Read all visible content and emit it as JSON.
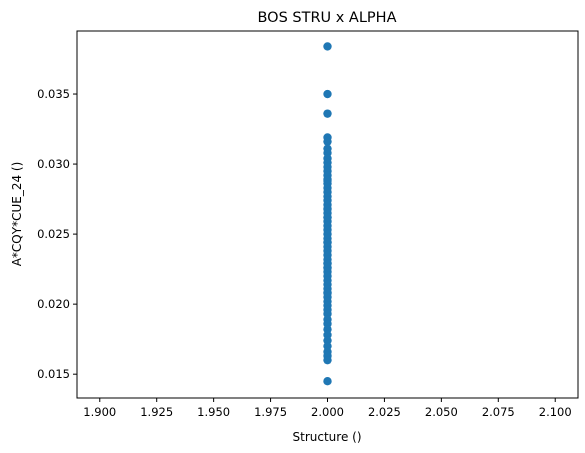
{
  "chart_data": {
    "type": "scatter",
    "title": "BOS STRU x ALPHA",
    "xlabel": "Structure ()",
    "ylabel": "A*CQY*CUE_24 ()",
    "xlim": [
      1.89,
      2.11
    ],
    "ylim": [
      0.0133,
      0.0395
    ],
    "xticks": [
      "1.900",
      "1.925",
      "1.950",
      "1.975",
      "2.000",
      "2.025",
      "2.050",
      "2.075",
      "2.100"
    ],
    "yticks": [
      "0.015",
      "0.020",
      "0.025",
      "0.030",
      "0.035"
    ],
    "grid": false,
    "legend": "none",
    "marker_color": "#1f77b4",
    "x": [
      2.0,
      2.0,
      2.0,
      2.0,
      2.0,
      2.0,
      2.0,
      2.0,
      2.0,
      2.0,
      2.0,
      2.0,
      2.0,
      2.0,
      2.0,
      2.0,
      2.0,
      2.0,
      2.0,
      2.0,
      2.0,
      2.0,
      2.0,
      2.0,
      2.0,
      2.0,
      2.0,
      2.0,
      2.0,
      2.0,
      2.0,
      2.0,
      2.0,
      2.0,
      2.0,
      2.0,
      2.0,
      2.0,
      2.0,
      2.0,
      2.0,
      2.0,
      2.0,
      2.0,
      2.0,
      2.0,
      2.0,
      2.0,
      2.0,
      2.0,
      2.0,
      2.0,
      2.0,
      2.0,
      2.0,
      2.0,
      2.0,
      2.0,
      2.0,
      2.0,
      2.0,
      2.0
    ],
    "y": [
      0.0384,
      0.035,
      0.0336,
      0.0319,
      0.0316,
      0.0311,
      0.0308,
      0.0304,
      0.0301,
      0.0298,
      0.0295,
      0.0292,
      0.0289,
      0.0286,
      0.0283,
      0.028,
      0.0277,
      0.0274,
      0.0271,
      0.0268,
      0.0265,
      0.0262,
      0.0259,
      0.0256,
      0.0253,
      0.025,
      0.0247,
      0.0244,
      0.0241,
      0.0238,
      0.0235,
      0.0232,
      0.0229,
      0.0226,
      0.0223,
      0.022,
      0.0217,
      0.0214,
      0.0211,
      0.0208,
      0.0205,
      0.0202,
      0.0199,
      0.0196,
      0.0193,
      0.0189,
      0.0186,
      0.0182,
      0.0178,
      0.0174,
      0.017,
      0.0166,
      0.0163,
      0.016,
      0.0145,
      0.0262,
      0.0244,
      0.0226,
      0.0208,
      0.0288,
      0.0268,
      0.0229
    ]
  }
}
